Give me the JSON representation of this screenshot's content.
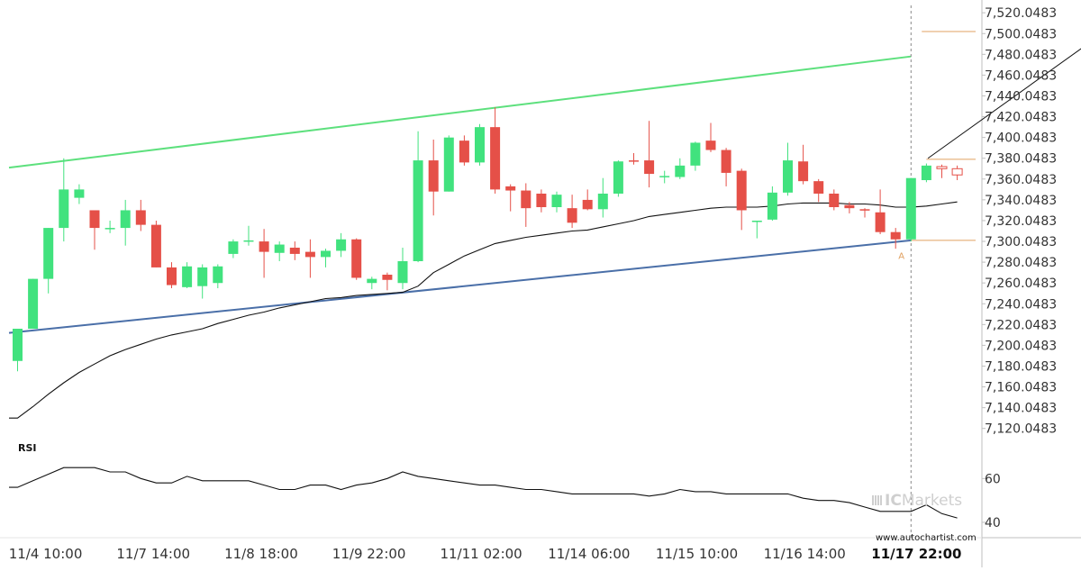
{
  "chart_data": {
    "type": "candlestick",
    "price_ticks": [
      "7,520.0483",
      "7,500.0483",
      "7,480.0483",
      "7,460.0483",
      "7,440.0483",
      "7,420.0483",
      "7,400.0483",
      "7,380.0483",
      "7,360.0483",
      "7,340.0483",
      "7,320.0483",
      "7,300.0483",
      "7,280.0483",
      "7,260.0483",
      "7,240.0483",
      "7,220.0483",
      "7,200.0483",
      "7,180.0483",
      "7,160.0483",
      "7,140.0483",
      "7,120.0483"
    ],
    "ylim": [
      7112,
      7528
    ],
    "x_ticks": [
      {
        "label": "11/4 10:00",
        "index": 2
      },
      {
        "label": "11/7 14:00",
        "index": 9
      },
      {
        "label": "11/8 18:00",
        "index": 16
      },
      {
        "label": "11/9 22:00",
        "index": 23
      },
      {
        "label": "11/11 02:00",
        "index": 30
      },
      {
        "label": "11/14 06:00",
        "index": 37
      },
      {
        "label": "11/15 10:00",
        "index": 44
      },
      {
        "label": "11/16 14:00",
        "index": 51
      },
      {
        "label": "11/17 22:00",
        "index": 58,
        "bold": true
      }
    ],
    "candles": [
      [
        7185,
        7216,
        7175,
        7216
      ],
      [
        7216,
        7264,
        7216,
        7264
      ],
      [
        7264,
        7313,
        7250,
        7313
      ],
      [
        7313,
        7350,
        7300,
        7380
      ],
      [
        7342,
        7350,
        7336,
        7355
      ],
      [
        7330,
        7313,
        7292,
        7330
      ],
      [
        7313,
        7313,
        7308,
        7320
      ],
      [
        7313,
        7330,
        7296,
        7340
      ],
      [
        7330,
        7316,
        7310,
        7340
      ],
      [
        7316,
        7275,
        7275,
        7320
      ],
      [
        7275,
        7258,
        7255,
        7280
      ],
      [
        7256,
        7276,
        7255,
        7280
      ],
      [
        7257,
        7275,
        7245,
        7278
      ],
      [
        7260,
        7276,
        7255,
        7278
      ],
      [
        7288,
        7300,
        7284,
        7302
      ],
      [
        7301,
        7301,
        7296,
        7315
      ],
      [
        7300,
        7290,
        7265,
        7312
      ],
      [
        7289,
        7297,
        7281,
        7300
      ],
      [
        7294,
        7288,
        7282,
        7300
      ],
      [
        7290,
        7285,
        7265,
        7302
      ],
      [
        7285,
        7291,
        7275,
        7293
      ],
      [
        7291,
        7302,
        7285,
        7308
      ],
      [
        7302,
        7265,
        7263,
        7303
      ],
      [
        7260,
        7264,
        7254,
        7266
      ],
      [
        7268,
        7263,
        7253,
        7270
      ],
      [
        7260,
        7281,
        7254,
        7294
      ],
      [
        7281,
        7378,
        7280,
        7406
      ],
      [
        7378,
        7348,
        7325,
        7398
      ],
      [
        7348,
        7400,
        7348,
        7402
      ],
      [
        7397,
        7376,
        7373,
        7402
      ],
      [
        7376,
        7410,
        7373,
        7413
      ],
      [
        7410,
        7350,
        7346,
        7429
      ],
      [
        7353,
        7349,
        7329,
        7355
      ],
      [
        7349,
        7332,
        7314,
        7356
      ],
      [
        7346,
        7333,
        7328,
        7350
      ],
      [
        7333,
        7345,
        7328,
        7348
      ],
      [
        7332,
        7318,
        7313,
        7345
      ],
      [
        7340,
        7331,
        7330,
        7350
      ],
      [
        7331,
        7346,
        7323,
        7361
      ],
      [
        7346,
        7377,
        7343,
        7378
      ],
      [
        7378,
        7377,
        7374,
        7385
      ],
      [
        7378,
        7365,
        7352,
        7416
      ],
      [
        7362,
        7363,
        7356,
        7368
      ],
      [
        7362,
        7373,
        7360,
        7380
      ],
      [
        7373,
        7395,
        7368,
        7396
      ],
      [
        7397,
        7388,
        7386,
        7414
      ],
      [
        7388,
        7366,
        7353,
        7390
      ],
      [
        7368,
        7330,
        7311,
        7370
      ],
      [
        7320,
        7320,
        7303,
        7320
      ],
      [
        7321,
        7347,
        7320,
        7353
      ],
      [
        7347,
        7378,
        7344,
        7395
      ],
      [
        7377,
        7358,
        7355,
        7393
      ],
      [
        7358,
        7346,
        7338,
        7360
      ],
      [
        7346,
        7333,
        7330,
        7350
      ],
      [
        7335,
        7332,
        7327,
        7338
      ],
      [
        7331,
        7330,
        7323,
        7332
      ],
      [
        7328,
        7309,
        7307,
        7350
      ],
      [
        7309,
        7302,
        7293,
        7313
      ],
      [
        7302,
        7361,
        7300,
        7361
      ],
      [
        7359,
        7373,
        7357,
        7375
      ],
      [
        7372,
        7370,
        7361,
        7374
      ],
      [
        7370,
        7364,
        7359,
        7373
      ]
    ],
    "moving_average": [
      7130,
      7141,
      7153,
      7164,
      7174,
      7182,
      7190,
      7196,
      7201,
      7206,
      7210,
      7213,
      7216,
      7221,
      7225,
      7229,
      7232,
      7236,
      7239,
      7242,
      7245,
      7246,
      7248,
      7249,
      7250,
      7251,
      7257,
      7270,
      7278,
      7286,
      7292,
      7298,
      7301,
      7304,
      7306,
      7308,
      7310,
      7311,
      7314,
      7317,
      7320,
      7324,
      7326,
      7328,
      7330,
      7332,
      7333,
      7333,
      7333,
      7334,
      7336,
      7337,
      7337,
      7337,
      7336,
      7336,
      7335,
      7333,
      7333,
      7334,
      7336,
      7338
    ],
    "rsi": {
      "label": "RSI",
      "ticks": [
        60,
        40
      ],
      "ylim": [
        33,
        77
      ],
      "values": [
        56,
        59,
        62,
        65,
        65,
        65,
        63,
        63,
        60,
        58,
        58,
        61,
        59,
        59,
        59,
        59,
        57,
        55,
        55,
        57,
        57,
        55,
        57,
        58,
        60,
        63,
        61,
        60,
        59,
        58,
        57,
        57,
        56,
        55,
        55,
        54,
        53,
        53,
        53,
        53,
        53,
        52,
        53,
        55,
        54,
        54,
        53,
        53,
        53,
        53,
        53,
        51,
        50,
        50,
        49,
        47,
        45,
        45,
        45,
        48,
        44,
        42
      ]
    },
    "trendlines": {
      "upper": {
        "from": [
          0,
          7371
        ],
        "to": [
          58,
          7478
        ],
        "color": "#5de07d"
      },
      "lower": {
        "from": [
          0,
          7212
        ],
        "to": [
          58,
          7301
        ],
        "color": "#4a6fa8"
      }
    },
    "levels": [
      {
        "y": 7502,
        "from": 58.7,
        "to": 71.0
      },
      {
        "y": 7379,
        "from": 59.0,
        "to": 71.0
      },
      {
        "y": 7301,
        "from": 58.0,
        "to": 71.0
      }
    ],
    "projection_arrow": {
      "from": [
        59.1,
        7380
      ],
      "to": [
        70.5,
        7501
      ]
    },
    "vertical_marker_index": 58,
    "marker_letter": "A",
    "colors": {
      "up": "#41e27e",
      "down": "#e55048",
      "ma": "#111111",
      "level": "#e0a060",
      "marker": "#e0a060",
      "axis_text": "#333333",
      "border": "#bfbfbf"
    }
  },
  "branding": {
    "name_part1": "IC",
    "name_part2": "Markets",
    "website": "www.autochartist.com"
  }
}
